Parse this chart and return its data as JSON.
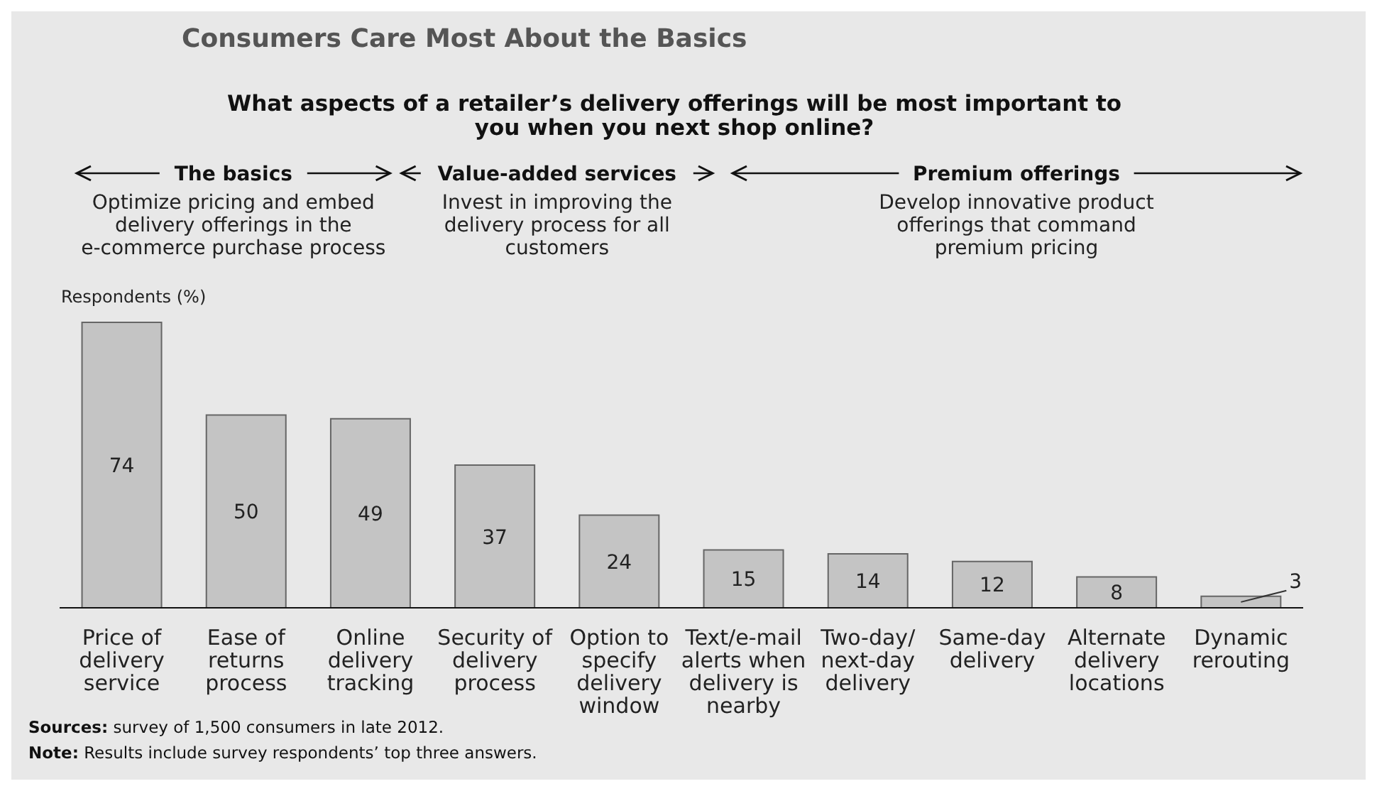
{
  "chart_data": {
    "type": "bar",
    "title": "Consumers Care Most About the Basics",
    "subtitle": "What aspects of a retailer’s delivery offerings will be most important to you when you next shop online?",
    "ylabel": "Respondents (%)",
    "categories": [
      "Price of delivery service",
      "Ease of returns process",
      "Online delivery tracking",
      "Security of delivery process",
      "Option to specify delivery window",
      "Text/e-mail alerts when delivery is nearby",
      "Two-day/ next-day delivery",
      "Same-day delivery",
      "Alternate delivery locations",
      "Dynamic rerouting"
    ],
    "values": [
      74,
      50,
      49,
      37,
      24,
      15,
      14,
      12,
      8,
      3
    ],
    "color": "#c4c4c4",
    "data_labels": true,
    "grid": false,
    "legend": false,
    "annotations": [
      "The basics",
      "Optimize pricing and embed delivery offerings in the e-commerce purchase process",
      "Value-added services",
      "Invest in improving the delivery process for all customers",
      "Premium offerings",
      "Develop innovative product offerings that command premium pricing",
      "Sources: survey of 1,500 consumers in late 2012.",
      "Note: Results include survey respondents’ top three answers."
    ]
  }
}
